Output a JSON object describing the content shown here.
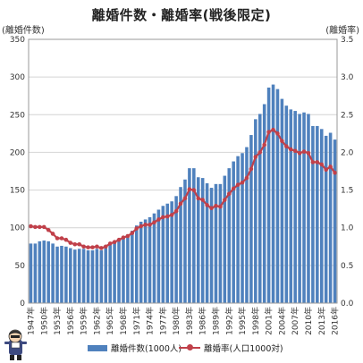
{
  "chart_data": {
    "type": "bar+line",
    "title": "離婚件数・離婚率(戦後限定)",
    "left_axis_label": "(離婚件数)",
    "right_axis_label": "(離婚率)",
    "years": [
      1947,
      1948,
      1949,
      1950,
      1951,
      1952,
      1953,
      1954,
      1955,
      1956,
      1957,
      1958,
      1959,
      1960,
      1961,
      1962,
      1963,
      1964,
      1965,
      1966,
      1967,
      1968,
      1969,
      1970,
      1971,
      1972,
      1973,
      1974,
      1975,
      1976,
      1977,
      1978,
      1979,
      1980,
      1981,
      1982,
      1983,
      1984,
      1985,
      1986,
      1987,
      1988,
      1989,
      1990,
      1991,
      1992,
      1993,
      1994,
      1995,
      1996,
      1997,
      1998,
      1999,
      2000,
      2001,
      2002,
      2003,
      2004,
      2005,
      2006,
      2007,
      2008,
      2009,
      2010,
      2011,
      2012,
      2013,
      2014,
      2015,
      2016
    ],
    "xtick_labels": [
      "1947年",
      "1950年",
      "1953年",
      "1956年",
      "1959年",
      "1962年",
      "1965年",
      "1968年",
      "1971年",
      "1974年",
      "1977年",
      "1980年",
      "1983年",
      "1986年",
      "1989年",
      "1992年",
      "1995年",
      "1998年",
      "2001年",
      "2004年",
      "2007年",
      "2010年",
      "2013年",
      "2016年"
    ],
    "yleft_ticks": [
      "0",
      "50",
      "100",
      "150",
      "200",
      "250",
      "300",
      "350"
    ],
    "yright_ticks": [
      "0.0",
      "0.5",
      "1.0",
      "1.5",
      "2.0",
      "2.5",
      "3.0",
      "3.5"
    ],
    "ylim_left": [
      0,
      350
    ],
    "ylim_right": [
      0,
      3.5
    ],
    "series": [
      {
        "name": "離婚件数(1000人)",
        "type": "bar",
        "axis": "left",
        "color": "#4f81bd",
        "values": [
          79,
          79,
          82,
          83,
          82,
          79,
          75,
          76,
          75,
          73,
          71,
          72,
          72,
          70,
          70,
          72,
          70,
          73,
          77,
          80,
          83,
          87,
          91,
          96,
          103,
          108,
          111,
          114,
          119,
          124,
          129,
          132,
          135,
          142,
          154,
          164,
          179,
          179,
          167,
          166,
          159,
          153,
          158,
          158,
          169,
          179,
          188,
          195,
          199,
          207,
          223,
          244,
          251,
          264,
          286,
          290,
          284,
          271,
          262,
          257,
          255,
          251,
          253,
          251,
          235,
          235,
          231,
          222,
          226,
          217
        ]
      },
      {
        "name": "離婚率(人口1000対)",
        "type": "line",
        "axis": "right",
        "color": "#c0404a",
        "values": [
          1.02,
          1.01,
          1.01,
          1.01,
          0.97,
          0.92,
          0.86,
          0.86,
          0.84,
          0.8,
          0.78,
          0.78,
          0.75,
          0.74,
          0.74,
          0.75,
          0.73,
          0.75,
          0.79,
          0.81,
          0.84,
          0.87,
          0.89,
          0.93,
          0.99,
          1.02,
          1.04,
          1.04,
          1.07,
          1.11,
          1.14,
          1.15,
          1.17,
          1.22,
          1.32,
          1.39,
          1.51,
          1.5,
          1.39,
          1.37,
          1.3,
          1.26,
          1.29,
          1.28,
          1.37,
          1.45,
          1.52,
          1.57,
          1.6,
          1.66,
          1.78,
          1.94,
          2.0,
          2.1,
          2.27,
          2.3,
          2.25,
          2.15,
          2.08,
          2.04,
          2.02,
          1.99,
          2.01,
          1.99,
          1.87,
          1.87,
          1.84,
          1.77,
          1.81,
          1.73
        ]
      }
    ],
    "legend_position": "bottom"
  },
  "mascot_icon": "cartoon-character-icon"
}
